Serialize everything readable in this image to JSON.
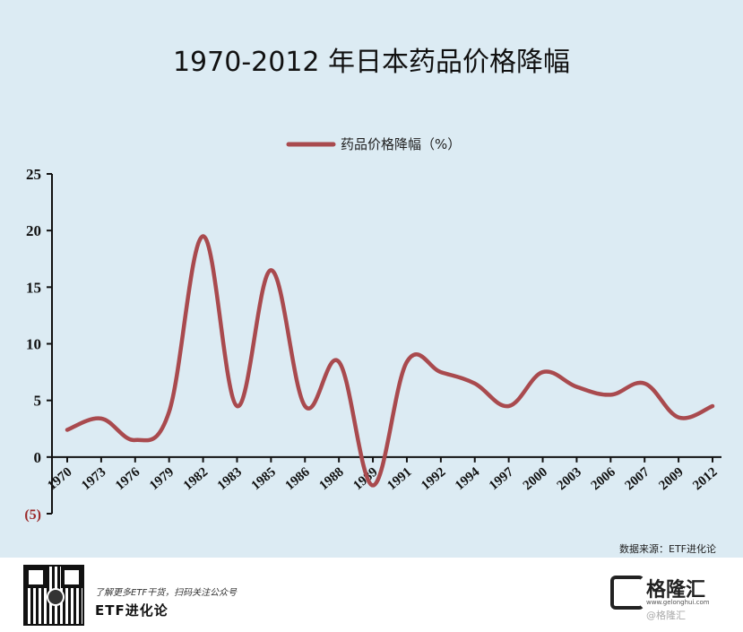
{
  "title": "1970-2012 年日本药品价格降幅",
  "source_text": "数据来源：ETF进化论",
  "footer": {
    "promo": "了解更多ETF干货，扫码关注公众号",
    "brand": "ETF进化论",
    "logo_name": "格隆汇",
    "logo_url": "www.gelonghui.com",
    "logo_watermark": "@格隆汇"
  },
  "chart_data": {
    "type": "line",
    "title": "1970-2012 年日本药品价格降幅",
    "xlabel": "",
    "ylabel": "",
    "ylim": [
      -5,
      25
    ],
    "yticks": [
      {
        "value": 25,
        "label": "25"
      },
      {
        "value": 20,
        "label": "20"
      },
      {
        "value": 15,
        "label": "15"
      },
      {
        "value": 10,
        "label": "10"
      },
      {
        "value": 5,
        "label": "5"
      },
      {
        "value": 0,
        "label": "0"
      },
      {
        "value": -5,
        "label": "(5)"
      }
    ],
    "categories": [
      "1970",
      "1973",
      "1976",
      "1979",
      "1982",
      "1983",
      "1985",
      "1986",
      "1988",
      "1989",
      "1991",
      "1992",
      "1994",
      "1997",
      "2000",
      "2003",
      "2006",
      "2007",
      "2009",
      "2012"
    ],
    "legend": {
      "position": "top-center",
      "entries": [
        "药品价格降幅（%）"
      ]
    },
    "grid": false,
    "series": [
      {
        "name": "药品价格降幅（%）",
        "color": "#a94a4e",
        "values": [
          2.4,
          3.4,
          1.5,
          4.0,
          19.5,
          4.5,
          16.5,
          4.5,
          8.4,
          -2.5,
          8.4,
          7.5,
          6.5,
          4.5,
          7.5,
          6.2,
          5.5,
          6.5,
          3.5,
          4.5
        ]
      }
    ]
  }
}
